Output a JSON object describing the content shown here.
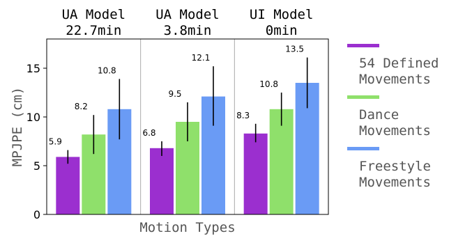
{
  "chart_data": {
    "type": "bar",
    "categories": [
      [
        "UA Model",
        "22.7min"
      ],
      [
        "UA Model",
        "3.8min"
      ],
      [
        "UI Model",
        "0min"
      ]
    ],
    "series": [
      {
        "name": [
          "54 Defined",
          "Movements"
        ],
        "color": "#9b2fcf",
        "values": [
          5.9,
          6.8,
          8.3
        ],
        "error_low": [
          5.2,
          6.0,
          7.4
        ],
        "error_high": [
          6.6,
          7.5,
          9.3
        ],
        "labels": [
          "5.9",
          "6.8",
          "8.3"
        ]
      },
      {
        "name": [
          "Dance",
          "Movements"
        ],
        "color": "#8fe06b",
        "values": [
          8.2,
          9.5,
          10.8
        ],
        "error_low": [
          6.2,
          7.5,
          9.1
        ],
        "error_high": [
          10.2,
          11.5,
          12.5
        ],
        "labels": [
          "8.2",
          "9.5",
          "10.8"
        ]
      },
      {
        "name": [
          "Freestyle",
          "Movements"
        ],
        "color": "#6a9bf5",
        "values": [
          10.8,
          12.1,
          13.5
        ],
        "error_low": [
          7.7,
          9.1,
          10.9
        ],
        "error_high": [
          13.9,
          15.2,
          16.1
        ],
        "labels": [
          "10.8",
          "12.1",
          "13.5"
        ]
      }
    ],
    "xlabel": "Motion Types",
    "ylabel": "MPJPE (cm)",
    "ylim": [
      0,
      18
    ],
    "yticks": [
      0,
      5,
      10,
      15
    ],
    "grid": false,
    "legend": "right-outside"
  }
}
